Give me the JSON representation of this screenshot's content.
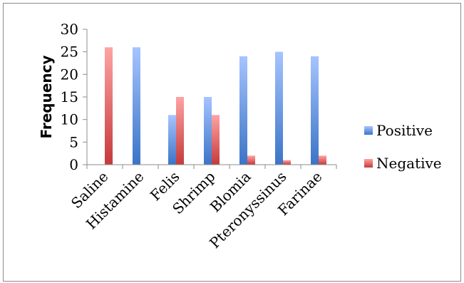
{
  "chart_data": {
    "type": "bar",
    "title": "",
    "xlabel": "",
    "ylabel": "Frequency",
    "ylim": [
      0,
      30
    ],
    "yticks": [
      0,
      5,
      10,
      15,
      20,
      25,
      30
    ],
    "categories": [
      "Saline",
      "Histamine",
      "Felis",
      "Shrimp",
      "Blomia",
      "Pteronyssinus",
      "Farinae"
    ],
    "series": [
      {
        "name": "Positive",
        "values": [
          0,
          26,
          11,
          15,
          24,
          25,
          24
        ],
        "color_top": "#a6c4ff",
        "color_bottom": "#3b74c7"
      },
      {
        "name": "Negative",
        "values": [
          26,
          0,
          15,
          11,
          2,
          1,
          2
        ],
        "color_top": "#ffa3a3",
        "color_bottom": "#c53a3a"
      }
    ],
    "grid": false,
    "legend_position": "right"
  }
}
